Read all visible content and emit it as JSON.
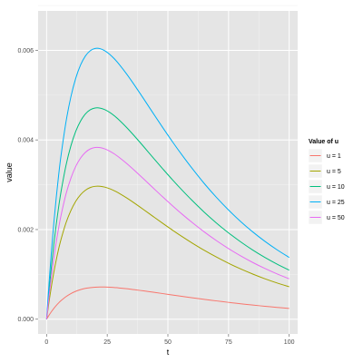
{
  "chart_data": {
    "type": "line",
    "xlabel": "t",
    "ylabel": "value",
    "xlim": [
      -3.5,
      103.5
    ],
    "ylim": [
      -0.00033,
      0.00688
    ],
    "x_ticks": [
      0,
      25,
      50,
      75,
      100
    ],
    "x_tick_labels": [
      "0",
      "25",
      "50",
      "75",
      "100"
    ],
    "y_ticks": [
      0,
      0.002,
      0.004,
      0.006
    ],
    "y_tick_labels": [
      "0.000",
      "0.002",
      "0.004",
      "0.006"
    ],
    "grid": true,
    "legend": {
      "title": "Value of u",
      "placement": "right"
    },
    "x": [
      0,
      1,
      2,
      3,
      4,
      5,
      6,
      8,
      10,
      12,
      14,
      16,
      18,
      20,
      22,
      24,
      26,
      28,
      30,
      33,
      36,
      40,
      44,
      48,
      52,
      56,
      60,
      65,
      70,
      75,
      80,
      85,
      90,
      95,
      100
    ],
    "series": [
      {
        "name": "u = 1",
        "color": "#f8766d",
        "values": [
          0,
          8.9e-05,
          0.000169,
          0.000242,
          0.000307,
          0.000365,
          0.000416,
          0.000503,
          0.000571,
          0.000622,
          0.00066,
          0.000687,
          0.000704,
          0.000714,
          0.000718,
          0.000717,
          0.000713,
          0.000706,
          0.000696,
          0.000679,
          0.000659,
          0.000631,
          0.000601,
          0.00057,
          0.000539,
          0.000508,
          0.000478,
          0.000442,
          0.000408,
          0.000375,
          0.000344,
          0.000315,
          0.000288,
          0.000263,
          0.00024
        ]
      },
      {
        "name": "u = 5",
        "color": "#a3a500",
        "values": [
          0,
          0.00039,
          0.000739,
          0.001052,
          0.00133,
          0.001576,
          0.001792,
          0.002151,
          0.002424,
          0.00263,
          0.002778,
          0.002878,
          0.002938,
          0.002965,
          0.002966,
          0.002947,
          0.002911,
          0.002863,
          0.002806,
          0.002707,
          0.002598,
          0.002445,
          0.002289,
          0.002134,
          0.001983,
          0.001838,
          0.0017,
          0.001537,
          0.001387,
          0.001248,
          0.001122,
          0.001007,
          0.000902,
          0.000808,
          0.000723
        ]
      },
      {
        "name": "u = 10",
        "color": "#00bf7d",
        "values": [
          0,
          0.000625,
          0.001184,
          0.001683,
          0.002127,
          0.002519,
          0.002862,
          0.003433,
          0.003866,
          0.00419,
          0.004423,
          0.00458,
          0.004673,
          0.004713,
          0.004711,
          0.004676,
          0.004615,
          0.004535,
          0.00444,
          0.004278,
          0.0041,
          0.003852,
          0.003598,
          0.003348,
          0.003104,
          0.002871,
          0.002649,
          0.002387,
          0.002147,
          0.001926,
          0.001726,
          0.001543,
          0.001378,
          0.001229,
          0.001095
        ]
      },
      {
        "name": "u = 25",
        "color": "#00b0f6",
        "values": [
          0,
          0.000802,
          0.00152,
          0.00216,
          0.00273,
          0.003233,
          0.003673,
          0.004405,
          0.00496,
          0.005375,
          0.005673,
          0.005874,
          0.005992,
          0.006042,
          0.006038,
          0.005991,
          0.00591,
          0.005806,
          0.005682,
          0.005472,
          0.005241,
          0.004919,
          0.00459,
          0.004266,
          0.003951,
          0.00365,
          0.003364,
          0.003027,
          0.002719,
          0.002437,
          0.00218,
          0.001947,
          0.001737,
          0.001548,
          0.001378
        ]
      },
      {
        "name": "u = 50",
        "color": "#e76bf3",
        "values": [
          0,
          0.000508,
          0.000963,
          0.001369,
          0.00173,
          0.002049,
          0.002329,
          0.002793,
          0.003145,
          0.003408,
          0.003597,
          0.003724,
          0.003799,
          0.003831,
          0.003829,
          0.0038,
          0.00375,
          0.003685,
          0.003607,
          0.003475,
          0.003331,
          0.00313,
          0.002925,
          0.002722,
          0.002526,
          0.002337,
          0.002158,
          0.001947,
          0.001753,
          0.001575,
          0.001413,
          0.001265,
          0.001131,
          0.00101,
          0.000901
        ]
      }
    ]
  }
}
